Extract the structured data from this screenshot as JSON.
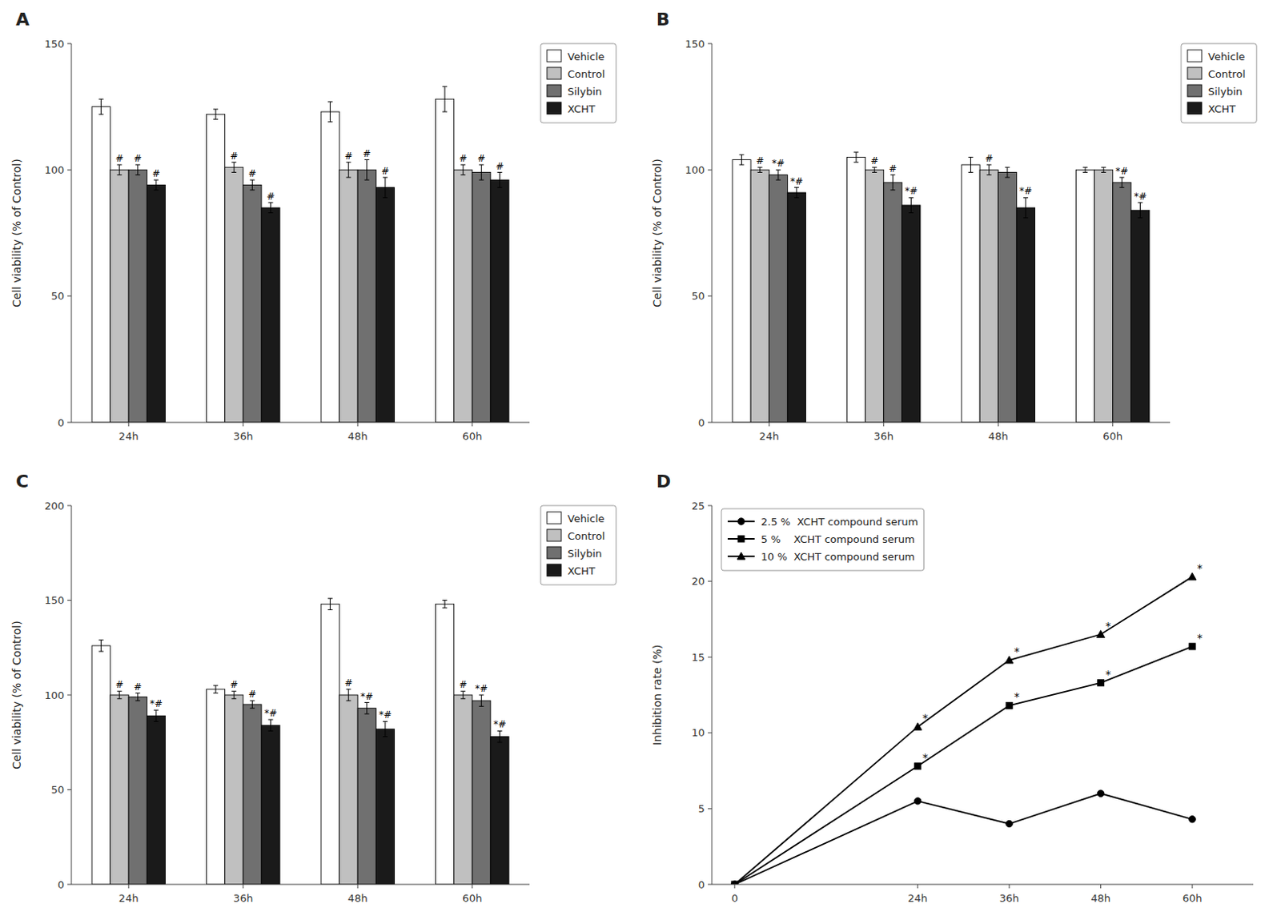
{
  "chart_data": [
    {
      "type": "bar",
      "title": "A",
      "y_label": "Cell viability (% of Control)",
      "categories": [
        "24h",
        "36h",
        "48h",
        "60h"
      ],
      "series": [
        {
          "name": "Vehicle",
          "color": "#ffffff",
          "values": [
            125,
            122,
            123,
            128
          ],
          "errors": [
            3,
            2,
            4,
            5
          ]
        },
        {
          "name": "Control",
          "color": "#c0c0c0",
          "values": [
            100,
            101,
            100,
            100
          ],
          "errors": [
            2,
            2,
            3,
            2
          ],
          "annotations": [
            "#",
            "#",
            "#",
            "#"
          ]
        },
        {
          "name": "Silybin",
          "color": "#707070",
          "values": [
            100,
            94,
            100,
            99
          ],
          "errors": [
            2,
            2,
            4,
            3
          ],
          "annotations": [
            "#",
            "#",
            "#",
            "#"
          ]
        },
        {
          "name": "XCHT",
          "color": "#1a1a1a",
          "values": [
            94,
            85,
            93,
            96
          ],
          "errors": [
            2,
            2,
            4,
            3
          ],
          "annotations": [
            "#",
            "#",
            "#",
            "#"
          ]
        }
      ],
      "ylim": [
        0,
        150
      ],
      "yticks": [
        0,
        50,
        100,
        150
      ],
      "grid": false,
      "legend": "upper right"
    },
    {
      "type": "bar",
      "title": "B",
      "y_label": "Cell viability (% of Control)",
      "categories": [
        "24h",
        "36h",
        "48h",
        "60h"
      ],
      "series": [
        {
          "name": "Vehicle",
          "color": "#ffffff",
          "values": [
            104,
            105,
            102,
            100
          ],
          "errors": [
            2,
            2,
            3,
            1
          ]
        },
        {
          "name": "Control",
          "color": "#c0c0c0",
          "values": [
            100,
            100,
            100,
            100
          ],
          "errors": [
            1,
            1,
            2,
            1
          ],
          "annotations": [
            "#",
            "#",
            "#",
            null
          ]
        },
        {
          "name": "Silybin",
          "color": "#707070",
          "values": [
            98,
            95,
            99,
            95
          ],
          "errors": [
            2,
            3,
            2,
            2
          ],
          "annotations": [
            "*#",
            "#",
            null,
            "*#"
          ]
        },
        {
          "name": "XCHT",
          "color": "#1a1a1a",
          "values": [
            91,
            86,
            85,
            84
          ],
          "errors": [
            2,
            3,
            4,
            3
          ],
          "annotations": [
            "*#",
            "*#",
            "*#",
            "*#"
          ]
        }
      ],
      "ylim": [
        0,
        150
      ],
      "yticks": [
        0,
        50,
        100,
        150
      ],
      "grid": false,
      "legend": "upper right"
    },
    {
      "type": "bar",
      "title": "C",
      "y_label": "Cell viability (% of Control)",
      "categories": [
        "24h",
        "36h",
        "48h",
        "60h"
      ],
      "series": [
        {
          "name": "Vehicle",
          "color": "#ffffff",
          "values": [
            126,
            103,
            148,
            148
          ],
          "errors": [
            3,
            2,
            3,
            2
          ]
        },
        {
          "name": "Control",
          "color": "#c0c0c0",
          "values": [
            100,
            100,
            100,
            100
          ],
          "errors": [
            2,
            2,
            3,
            2
          ],
          "annotations": [
            "#",
            "#",
            "#",
            "#"
          ]
        },
        {
          "name": "Silybin",
          "color": "#707070",
          "values": [
            99,
            95,
            93,
            97
          ],
          "errors": [
            2,
            2,
            3,
            3
          ],
          "annotations": [
            "#",
            "#",
            "*#",
            "*#"
          ]
        },
        {
          "name": "XCHT",
          "color": "#1a1a1a",
          "values": [
            89,
            84,
            82,
            78
          ],
          "errors": [
            3,
            3,
            4,
            3
          ],
          "annotations": [
            "*#",
            "*#",
            "*#",
            "*#"
          ]
        }
      ],
      "ylim": [
        0,
        200
      ],
      "yticks": [
        0,
        50,
        100,
        150,
        200
      ],
      "grid": false,
      "legend": "upper right"
    },
    {
      "type": "line",
      "title": "D",
      "y_label": "Inhibition rate (%)",
      "x": [
        0,
        24,
        36,
        48,
        60
      ],
      "series": [
        {
          "name": "2.5 %  XCHT compound serum",
          "color": "#000000",
          "marker": "circle",
          "line_style": "solid",
          "values": [
            0,
            5.5,
            4.0,
            6.0,
            4.3
          ],
          "annotations": [
            null,
            null,
            null,
            null,
            null
          ]
        },
        {
          "name": "5 %    XCHT compound serum",
          "color": "#000000",
          "marker": "square",
          "line_style": "solid",
          "values": [
            0,
            7.8,
            11.8,
            13.3,
            15.7
          ],
          "annotations": [
            null,
            "*",
            "*",
            "*",
            "*"
          ]
        },
        {
          "name": "10 %  XCHT compound serum",
          "color": "#000000",
          "marker": "triangle",
          "line_style": "solid",
          "values": [
            0,
            10.4,
            14.8,
            16.5,
            20.3
          ],
          "annotations": [
            null,
            "*",
            "*",
            "*",
            "*"
          ]
        }
      ],
      "xlim": [
        -3,
        68
      ],
      "xticks": [
        0,
        {
          "value": 24,
          "label": "24h"
        },
        {
          "value": 36,
          "label": "36h"
        },
        {
          "value": 48,
          "label": "48h"
        },
        {
          "value": 60,
          "label": "60h"
        }
      ],
      "ylim": [
        0,
        25
      ],
      "yticks": [
        0,
        5,
        10,
        15,
        20,
        25
      ],
      "grid": false,
      "legend": "upper left"
    }
  ]
}
